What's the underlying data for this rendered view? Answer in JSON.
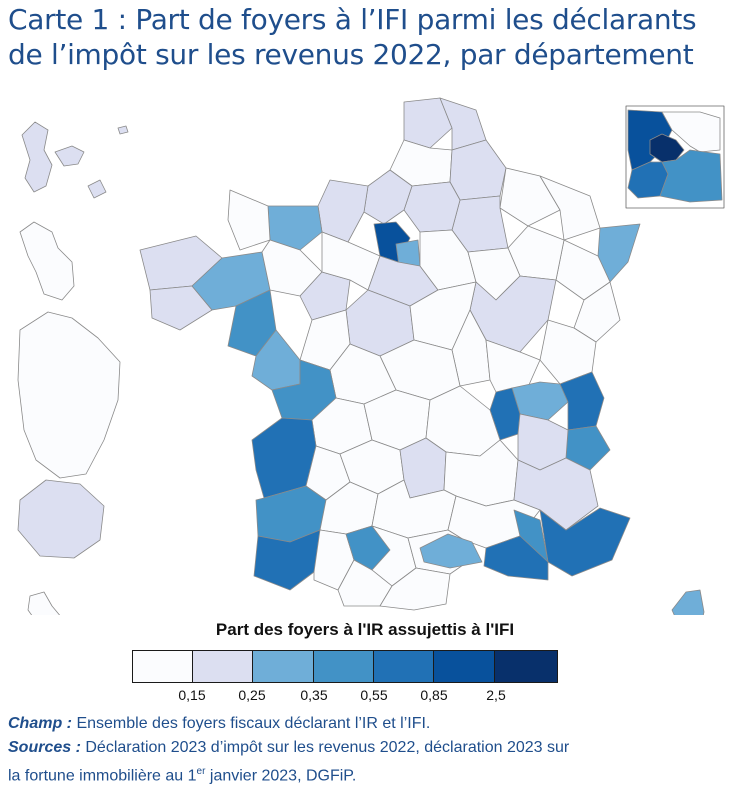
{
  "title": {
    "line1": "Carte 1 : Part de foyers à l’IFI parmi les déclarants",
    "line2": "de l’impôt sur les revenus 2022, par département"
  },
  "legend": {
    "title": "Part des foyers à l'IR assujettis à l'IFI",
    "class_colors": [
      "#fbfcfe",
      "#dcdff1",
      "#6faed8",
      "#4292c6",
      "#2171b5",
      "#08519c",
      "#08306b"
    ],
    "ticks": [
      "0,15",
      "0,25",
      "0,35",
      "0,55",
      "0,85",
      "2,5"
    ]
  },
  "notes": {
    "champ_label": "Champ :",
    "champ_text": "Ensemble des foyers fiscaux déclarant l’IR et l’IFI.",
    "sources_label": "Sources :",
    "sources_text": "Déclaration 2023 d’impôt sur les revenus 2022, déclaration 2023 sur",
    "sources_line2_a": "la fortune immobilière au 1",
    "sources_line2_sup": "er",
    "sources_line2_b": " janvier 2023, DGFiP."
  }
}
